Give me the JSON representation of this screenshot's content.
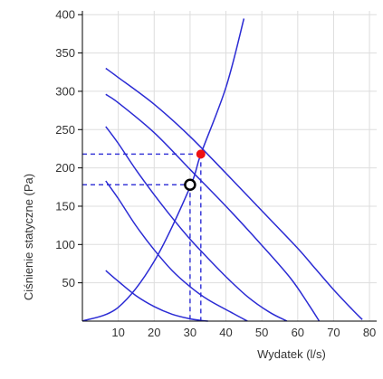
{
  "chart_data": {
    "type": "line",
    "xlabel": "Wydatek (l/s)",
    "ylabel": "Ciśnienie statyczne (Pa)",
    "xlim": [
      0,
      82
    ],
    "ylim": [
      0,
      405
    ],
    "x_ticks": [
      10,
      20,
      30,
      40,
      50,
      60,
      70,
      80
    ],
    "y_ticks": [
      50,
      100,
      150,
      200,
      250,
      300,
      350,
      400
    ],
    "grid": true,
    "line_color": "#2b2bd4",
    "guide_color": "#3b3bd8",
    "series": [
      {
        "x": [
          6.5,
          10,
          15,
          20,
          25,
          30,
          33,
          35
        ],
        "y": [
          66,
          52,
          33,
          19,
          9,
          3,
          1,
          0
        ]
      },
      {
        "x": [
          6.5,
          10,
          15,
          20,
          25,
          30,
          35,
          42,
          46
        ],
        "y": [
          183,
          160,
          124,
          93,
          66,
          45,
          28,
          10,
          0
        ]
      },
      {
        "x": [
          6.5,
          10,
          15,
          20,
          25,
          30,
          35,
          40,
          46,
          52,
          57
        ],
        "y": [
          254,
          232,
          197,
          165,
          135,
          107,
          82,
          58,
          32,
          12,
          0
        ]
      },
      {
        "x": [
          6.5,
          10,
          20,
          30,
          40,
          50,
          58,
          63,
          66
        ],
        "y": [
          296,
          285,
          246,
          198,
          150,
          99,
          56,
          22,
          0
        ]
      },
      {
        "x": [
          6.5,
          10,
          20,
          30,
          40,
          50,
          60,
          65,
          70,
          75,
          78
        ],
        "y": [
          330,
          318,
          283,
          241,
          193,
          144,
          95,
          68,
          41,
          16,
          2
        ]
      },
      {
        "x": [
          0,
          10,
          20,
          30,
          33,
          40,
          45
        ],
        "y": [
          0,
          18,
          78,
          175,
          218,
          305,
          395
        ]
      }
    ],
    "points": [
      {
        "x": 33,
        "y": 218,
        "style": "filled",
        "color": "#ee1111"
      },
      {
        "x": 30,
        "y": 178,
        "style": "open",
        "color": "#000000"
      }
    ],
    "guides": [
      {
        "x": 33,
        "y": 218
      },
      {
        "x": 30,
        "y": 178
      }
    ]
  }
}
